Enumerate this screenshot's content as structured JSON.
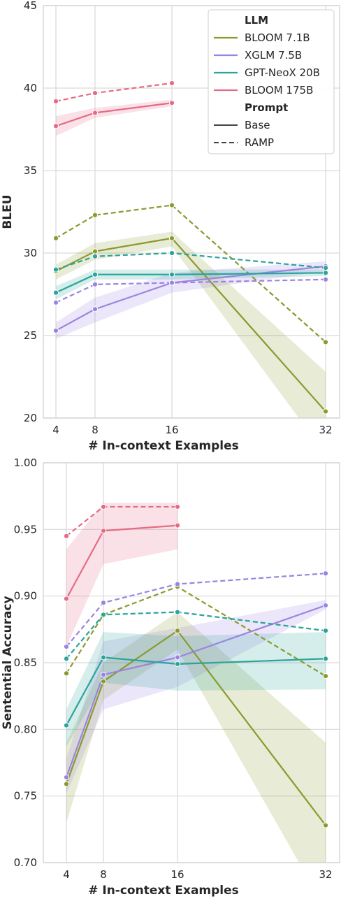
{
  "chart_data": [
    {
      "type": "line",
      "xlabel": "# In-context Examples",
      "ylabel": "BLEU",
      "x_ticks": [
        4,
        8,
        16,
        32
      ],
      "y_ticks": [
        20,
        25,
        30,
        35,
        40,
        45
      ],
      "ylim": [
        20,
        45
      ],
      "grid": true,
      "legend": {
        "placement": "top-right",
        "title_llm": "LLM",
        "title_prompt": "Prompt",
        "llm": [
          "BLOOM 7.1B",
          "XGLM 7.5B",
          "GPT-NeoX 20B",
          "BLOOM 175B"
        ],
        "prompt": [
          "Base",
          "RAMP"
        ]
      },
      "series": [
        {
          "name": "BLOOM 7.1B",
          "prompt": "Base",
          "color": "#8a9a2f",
          "x": [
            4,
            8,
            16,
            32
          ],
          "y": [
            28.9,
            30.1,
            30.9,
            20.4
          ],
          "band_low": [
            28.4,
            29.6,
            30.4,
            17.8
          ],
          "band_high": [
            29.3,
            30.6,
            31.3,
            22.8
          ]
        },
        {
          "name": "BLOOM 7.1B",
          "prompt": "RAMP",
          "color": "#8a9a2f",
          "x": [
            4,
            8,
            16,
            32
          ],
          "y": [
            30.9,
            32.3,
            32.9,
            24.6
          ]
        },
        {
          "name": "XGLM 7.5B",
          "prompt": "Base",
          "color": "#9b84e0",
          "x": [
            4,
            8,
            16,
            32
          ],
          "y": [
            25.3,
            26.6,
            28.2,
            29.2
          ],
          "band_low": [
            24.8,
            25.8,
            27.6,
            28.9
          ],
          "band_high": [
            25.8,
            27.3,
            28.8,
            29.5
          ]
        },
        {
          "name": "XGLM 7.5B",
          "prompt": "RAMP",
          "color": "#9b84e0",
          "x": [
            4,
            8,
            16,
            32
          ],
          "y": [
            27.0,
            28.1,
            28.2,
            28.4
          ]
        },
        {
          "name": "GPT-NeoX 20B",
          "prompt": "Base",
          "color": "#2ba49a",
          "x": [
            4,
            8,
            16,
            32
          ],
          "y": [
            27.6,
            28.7,
            28.7,
            28.8
          ],
          "band_low": [
            27.2,
            28.4,
            28.4,
            28.6
          ],
          "band_high": [
            28.0,
            29.0,
            29.0,
            29.0
          ]
        },
        {
          "name": "GPT-NeoX 20B",
          "prompt": "RAMP",
          "color": "#2ba49a",
          "x": [
            4,
            8,
            16,
            32
          ],
          "y": [
            29.0,
            29.8,
            30.0,
            29.1
          ]
        },
        {
          "name": "BLOOM 175B",
          "prompt": "Base",
          "color": "#e66b85",
          "x": [
            4,
            8,
            16
          ],
          "y": [
            37.7,
            38.5,
            39.1
          ],
          "band_low": [
            37.1,
            38.2,
            38.9
          ],
          "band_high": [
            38.3,
            38.8,
            39.3
          ]
        },
        {
          "name": "BLOOM 175B",
          "prompt": "RAMP",
          "color": "#e66b85",
          "x": [
            4,
            8,
            16
          ],
          "y": [
            39.2,
            39.7,
            40.3
          ]
        }
      ]
    },
    {
      "type": "line",
      "xlabel": "# In-context Examples",
      "ylabel": "Sentential Accuracy",
      "x_ticks": [
        4,
        8,
        16,
        32
      ],
      "y_ticks": [
        "0.70",
        "0.75",
        "0.80",
        "0.85",
        "0.90",
        "0.95",
        "1.00"
      ],
      "ylim": [
        0.7,
        1.0
      ],
      "grid": true,
      "series": [
        {
          "name": "BLOOM 7.1B",
          "prompt": "Base",
          "color": "#8a9a2f",
          "x": [
            4,
            8,
            16,
            32
          ],
          "y": [
            0.759,
            0.836,
            0.874,
            0.728
          ],
          "band_low": [
            0.73,
            0.822,
            0.86,
            0.665
          ],
          "band_high": [
            0.79,
            0.85,
            0.888,
            0.79
          ]
        },
        {
          "name": "BLOOM 7.1B",
          "prompt": "RAMP",
          "color": "#8a9a2f",
          "x": [
            4,
            8,
            16,
            32
          ],
          "y": [
            0.842,
            0.886,
            0.907,
            0.84
          ]
        },
        {
          "name": "XGLM 7.5B",
          "prompt": "Base",
          "color": "#9b84e0",
          "x": [
            4,
            8,
            16,
            32
          ],
          "y": [
            0.764,
            0.841,
            0.854,
            0.893
          ],
          "band_low": [
            0.752,
            0.815,
            0.832,
            0.89
          ],
          "band_high": [
            0.778,
            0.866,
            0.876,
            0.897
          ]
        },
        {
          "name": "XGLM 7.5B",
          "prompt": "RAMP",
          "color": "#9b84e0",
          "x": [
            4,
            8,
            16,
            32
          ],
          "y": [
            0.862,
            0.895,
            0.909,
            0.917
          ]
        },
        {
          "name": "GPT-NeoX 20B",
          "prompt": "Base",
          "color": "#2ba49a",
          "x": [
            4,
            8,
            16,
            32
          ],
          "y": [
            0.803,
            0.854,
            0.849,
            0.853
          ],
          "band_low": [
            0.787,
            0.835,
            0.829,
            0.83
          ],
          "band_high": [
            0.815,
            0.873,
            0.87,
            0.873
          ]
        },
        {
          "name": "GPT-NeoX 20B",
          "prompt": "RAMP",
          "color": "#2ba49a",
          "x": [
            4,
            8,
            16,
            32
          ],
          "y": [
            0.853,
            0.886,
            0.888,
            0.874
          ]
        },
        {
          "name": "BLOOM 175B",
          "prompt": "Base",
          "color": "#e66b85",
          "x": [
            4,
            8,
            16
          ],
          "y": [
            0.898,
            0.949,
            0.953
          ],
          "band_low": [
            0.862,
            0.924,
            0.935
          ],
          "band_high": [
            0.935,
            0.97,
            0.97
          ]
        },
        {
          "name": "BLOOM 175B",
          "prompt": "RAMP",
          "color": "#e66b85",
          "x": [
            4,
            8,
            16
          ],
          "y": [
            0.945,
            0.967,
            0.967
          ]
        }
      ]
    }
  ]
}
